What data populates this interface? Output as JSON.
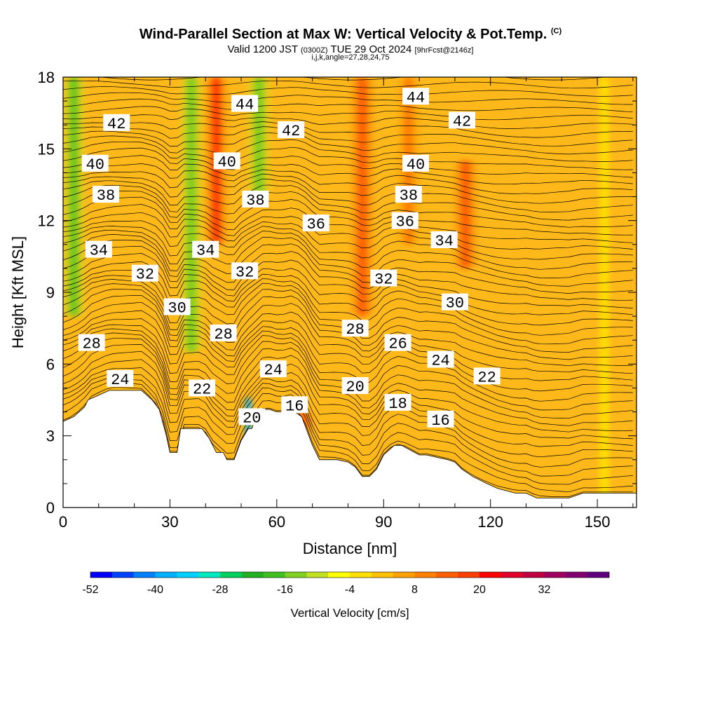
{
  "header": {
    "title": "Wind-Parallel Section at Max W: Vertical Velocity & Pot.Temp.",
    "copyright": "(C)",
    "valid_prefix": "Valid 1200 JST",
    "utc": "(0300Z)",
    "valid_date": "TUE 29 Oct 2024",
    "forecast": "[9hrFcst@2146z]",
    "indices": "i,j,k,angle=27,28,24,75"
  },
  "chart_data": {
    "type": "heatmap",
    "xlabel": "Distance [nm]",
    "ylabel": "Height [Kft MSL]",
    "xlim": [
      0,
      161
    ],
    "ylim": [
      0,
      18
    ],
    "x_ticks": [
      0,
      30,
      60,
      90,
      120,
      150
    ],
    "y_ticks": [
      0,
      3,
      6,
      9,
      12,
      15,
      18
    ],
    "colorbar": {
      "label": "Vertical Velocity [cm/s]",
      "tick_labels": [
        -52,
        -40,
        -28,
        -16,
        -4,
        8,
        20,
        32
      ],
      "colors": [
        "#0000ff",
        "#0040ff",
        "#0080ff",
        "#00b0ff",
        "#00d0ff",
        "#00e8c0",
        "#00d060",
        "#20b020",
        "#40c020",
        "#80d020",
        "#c0e020",
        "#ffff00",
        "#ffe000",
        "#ffc000",
        "#ffa000",
        "#ff8000",
        "#ff6000",
        "#ff4000",
        "#ff0000",
        "#e0002a",
        "#c00040",
        "#a00060",
        "#800070",
        "#600080"
      ]
    },
    "background_band": {
      "x_range": [
        0,
        161
      ],
      "w_cm_s": 6
    },
    "w_features": [
      {
        "x": 3,
        "y0": 8,
        "y1": 18,
        "w": -22
      },
      {
        "x": 36,
        "y0": 6.5,
        "y1": 18,
        "w": -18
      },
      {
        "x": 43,
        "y0": 11,
        "y1": 18,
        "w": 22
      },
      {
        "x": 55,
        "y0": 13,
        "y1": 18,
        "w": -18
      },
      {
        "x": 84,
        "y0": 8,
        "y1": 18,
        "w": 16
      },
      {
        "x": 97,
        "y0": 11,
        "y1": 18,
        "w": 14
      },
      {
        "x": 113,
        "y0": 10,
        "y1": 14.5,
        "w": 16
      },
      {
        "x": 52,
        "y0": 2.6,
        "y1": 4.6,
        "w": -40
      },
      {
        "x": 67,
        "y0": 3.2,
        "y1": 4.0,
        "w": 18
      },
      {
        "x": 152,
        "y0": 0.4,
        "y1": 18,
        "w": -2
      }
    ],
    "terrain_kft": {
      "x": [
        0,
        3,
        6,
        7,
        10,
        13,
        15,
        22,
        25,
        27,
        29,
        30,
        32,
        33,
        36,
        39,
        41,
        43,
        45,
        46,
        48,
        50,
        52,
        53,
        55,
        58,
        60,
        62,
        64,
        67,
        70,
        72,
        77,
        80,
        82,
        84,
        86,
        88,
        90,
        93,
        95,
        100,
        102,
        108,
        110,
        112,
        115,
        119,
        122,
        127,
        130,
        133,
        142,
        146,
        160,
        161
      ],
      "y": [
        3.6,
        3.8,
        4.2,
        4.5,
        4.7,
        4.9,
        4.9,
        4.9,
        4.5,
        4.1,
        3.0,
        2.3,
        2.3,
        3.3,
        3.3,
        3.3,
        2.9,
        2.3,
        2.3,
        2.0,
        2.0,
        2.8,
        3.3,
        3.3,
        4.1,
        4.1,
        4.0,
        4.0,
        4.1,
        3.8,
        2.6,
        2.0,
        2.0,
        1.9,
        1.7,
        1.3,
        1.3,
        1.6,
        2.2,
        2.6,
        2.6,
        2.2,
        2.2,
        2.0,
        1.9,
        1.6,
        1.3,
        1.0,
        0.8,
        0.6,
        0.6,
        0.4,
        0.4,
        0.6,
        0.6,
        0.6
      ]
    },
    "theta_labels": [
      {
        "text": "44",
        "x": 51,
        "y": 16.9
      },
      {
        "text": "44",
        "x": 99,
        "y": 17.2
      },
      {
        "text": "42",
        "x": 15,
        "y": 16.1
      },
      {
        "text": "42",
        "x": 64,
        "y": 15.8
      },
      {
        "text": "42",
        "x": 112,
        "y": 16.2
      },
      {
        "text": "40",
        "x": 9,
        "y": 14.4
      },
      {
        "text": "40",
        "x": 46,
        "y": 14.5
      },
      {
        "text": "40",
        "x": 99,
        "y": 14.4
      },
      {
        "text": "38",
        "x": 12,
        "y": 13.1
      },
      {
        "text": "38",
        "x": 54,
        "y": 12.9
      },
      {
        "text": "38",
        "x": 97,
        "y": 13.1
      },
      {
        "text": "36",
        "x": 71,
        "y": 11.9
      },
      {
        "text": "36",
        "x": 96,
        "y": 12.0
      },
      {
        "text": "34",
        "x": 10,
        "y": 10.8
      },
      {
        "text": "34",
        "x": 40,
        "y": 10.8
      },
      {
        "text": "34",
        "x": 107,
        "y": 11.2
      },
      {
        "text": "32",
        "x": 23,
        "y": 9.8
      },
      {
        "text": "32",
        "x": 51,
        "y": 9.9
      },
      {
        "text": "32",
        "x": 90,
        "y": 9.6
      },
      {
        "text": "30",
        "x": 32,
        "y": 8.4
      },
      {
        "text": "30",
        "x": 110,
        "y": 8.6
      },
      {
        "text": "28",
        "x": 8,
        "y": 6.9
      },
      {
        "text": "28",
        "x": 45,
        "y": 7.3
      },
      {
        "text": "28",
        "x": 82,
        "y": 7.5
      },
      {
        "text": "26",
        "x": 94,
        "y": 6.9
      },
      {
        "text": "24",
        "x": 16,
        "y": 5.4
      },
      {
        "text": "24",
        "x": 59,
        "y": 5.8
      },
      {
        "text": "24",
        "x": 106,
        "y": 6.2
      },
      {
        "text": "22",
        "x": 39,
        "y": 5.0
      },
      {
        "text": "22",
        "x": 119,
        "y": 5.5
      },
      {
        "text": "20",
        "x": 53,
        "y": 3.8
      },
      {
        "text": "20",
        "x": 82,
        "y": 5.1
      },
      {
        "text": "18",
        "x": 94,
        "y": 4.4
      },
      {
        "text": "16",
        "x": 65,
        "y": 4.3
      },
      {
        "text": "16",
        "x": 106,
        "y": 3.7
      }
    ]
  }
}
